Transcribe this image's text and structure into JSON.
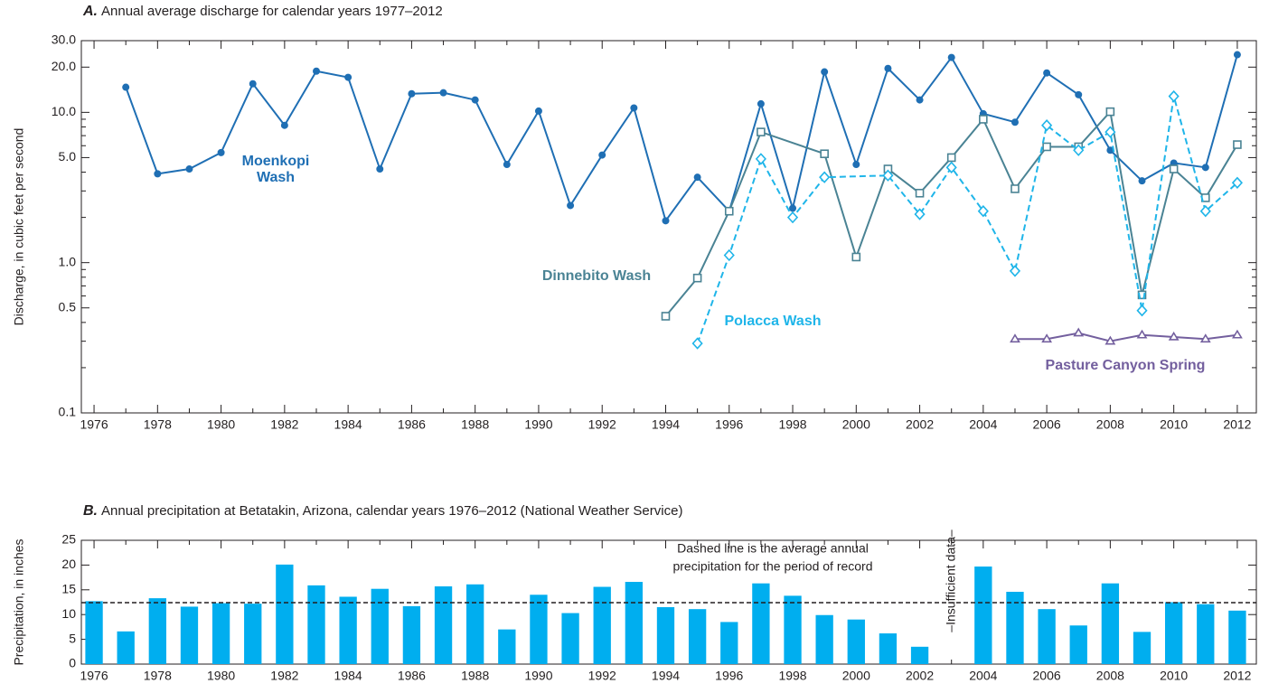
{
  "chart_data": [
    {
      "type": "line",
      "panel_label": "A.",
      "title": "Annual average discharge for calendar years 1977–2012",
      "ylabel": "Discharge, in cubic feet per second",
      "log_y": true,
      "xlim": [
        1975.6,
        2012.6
      ],
      "ylim": [
        0.1,
        30
      ],
      "xticks": [
        1976,
        1978,
        1980,
        1982,
        1984,
        1986,
        1988,
        1990,
        1992,
        1994,
        1996,
        1998,
        2000,
        2002,
        2004,
        2006,
        2008,
        2010,
        2012
      ],
      "xticks_minor": [
        1977,
        1979,
        1981,
        1983,
        1985,
        1987,
        1989,
        1991,
        1993,
        1995,
        1997,
        1999,
        2001,
        2003,
        2005,
        2007,
        2009,
        2011
      ],
      "yticks": [
        0.1,
        0.5,
        {
          "value": 1,
          "label": "1.0"
        },
        {
          "value": 5,
          "label": "5.0"
        },
        {
          "value": 10,
          "label": "10.0"
        },
        {
          "value": 20,
          "label": "20.0"
        },
        {
          "value": 30,
          "label": "30.0"
        }
      ],
      "yticks_minor": [
        0.2,
        0.3,
        0.4,
        0.6,
        0.7,
        0.8,
        0.9,
        2,
        3,
        4,
        6,
        7,
        8,
        9
      ],
      "series": [
        {
          "name": "Moenkopi Wash",
          "color": "#1f6fb4",
          "marker": "circle",
          "dash": false,
          "x": [
            1977,
            1978,
            1979,
            1980,
            1981,
            1982,
            1983,
            1984,
            1985,
            1986,
            1987,
            1988,
            1989,
            1990,
            1991,
            1992,
            1993,
            1994,
            1995,
            1996,
            1997,
            1998,
            1999,
            2000,
            2001,
            2002,
            2003,
            2004,
            2005,
            2006,
            2007,
            2008,
            2009,
            2010,
            2011,
            2012
          ],
          "values": [
            14.7,
            3.9,
            4.2,
            5.4,
            15.5,
            8.2,
            18.8,
            17.1,
            4.2,
            13.3,
            13.5,
            12.1,
            4.5,
            10.2,
            2.4,
            5.2,
            10.7,
            1.9,
            3.7,
            2.2,
            11.4,
            2.3,
            18.6,
            4.5,
            19.6,
            12.1,
            23.2,
            9.8,
            8.6,
            18.3,
            13.1,
            5.6,
            3.5,
            4.6,
            4.3,
            24.2
          ]
        },
        {
          "name": "Dinnebito Wash",
          "color": "#4a8394",
          "marker": "square",
          "dash": false,
          "x": [
            1994,
            1995,
            1996,
            1997,
            1999,
            2000,
            2001,
            2002,
            2003,
            2004,
            2005,
            2006,
            2007,
            2008,
            2009,
            2010,
            2011,
            2012
          ],
          "values": [
            0.44,
            0.79,
            2.2,
            7.4,
            5.3,
            1.09,
            4.2,
            2.9,
            5.0,
            9.0,
            3.1,
            5.9,
            5.9,
            10.1,
            0.61,
            4.2,
            2.7,
            6.1
          ]
        },
        {
          "name": "Polacca Wash",
          "color": "#1fb5e9",
          "marker": "diamond",
          "dash": true,
          "x": [
            1995,
            1996,
            1997,
            1998,
            1999,
            2001,
            2002,
            2003,
            2004,
            2005,
            2006,
            2007,
            2008,
            2009,
            2010,
            2011,
            2012
          ],
          "values": [
            0.29,
            1.12,
            4.9,
            2.0,
            3.7,
            3.8,
            2.1,
            4.3,
            2.2,
            0.88,
            8.2,
            5.6,
            7.4,
            0.48,
            12.8,
            2.2,
            3.4
          ]
        },
        {
          "name": "Pasture Canyon Spring",
          "color": "#735f9e",
          "marker": "triangle",
          "dash": false,
          "x": [
            2005,
            2006,
            2007,
            2008,
            2009,
            2010,
            2011,
            2012
          ],
          "values": [
            0.31,
            0.31,
            0.34,
            0.3,
            0.33,
            0.32,
            0.31,
            0.33
          ]
        }
      ]
    },
    {
      "type": "bar",
      "panel_label": "B.",
      "title": "Annual precipitation at Betatakin, Arizona, calendar years 1976–2012 (National Weather Service)",
      "ylabel": "Precipitation, in inches",
      "color": "#00aeef",
      "xlim": [
        1975.6,
        2012.6
      ],
      "ylim": [
        0,
        25
      ],
      "xticks": [
        1976,
        1978,
        1980,
        1982,
        1984,
        1986,
        1988,
        1990,
        1992,
        1994,
        1996,
        1998,
        2000,
        2002,
        2004,
        2006,
        2008,
        2010,
        2012
      ],
      "xticks_minor": [
        1977,
        1979,
        1981,
        1983,
        1985,
        1987,
        1989,
        1991,
        1993,
        1995,
        1997,
        1999,
        2001,
        2003,
        2005,
        2007,
        2009,
        2011
      ],
      "yticks": [
        0,
        5,
        10,
        15,
        20,
        25
      ],
      "x": [
        1976,
        1977,
        1978,
        1979,
        1980,
        1981,
        1982,
        1983,
        1984,
        1985,
        1986,
        1987,
        1988,
        1989,
        1990,
        1991,
        1992,
        1993,
        1994,
        1995,
        1996,
        1997,
        1998,
        1999,
        2000,
        2001,
        2002,
        2003,
        2004,
        2005,
        2006,
        2007,
        2008,
        2009,
        2010,
        2011,
        2012
      ],
      "values": [
        12.7,
        6.6,
        13.3,
        11.6,
        12.3,
        12.2,
        20.1,
        15.9,
        13.6,
        15.2,
        11.7,
        15.7,
        16.1,
        7.0,
        14.0,
        10.3,
        15.6,
        16.6,
        11.5,
        11.1,
        8.5,
        16.3,
        13.8,
        9.9,
        9.0,
        6.2,
        3.5,
        null,
        19.7,
        14.6,
        11.1,
        7.8,
        16.3,
        6.5,
        12.5,
        12.1,
        10.8
      ],
      "average": 12.4,
      "annotation": [
        "Dashed line is the average annual",
        "precipitation for the period of record"
      ],
      "missing_note": {
        "x": 2003,
        "text": "–Insufficient data–"
      }
    }
  ]
}
